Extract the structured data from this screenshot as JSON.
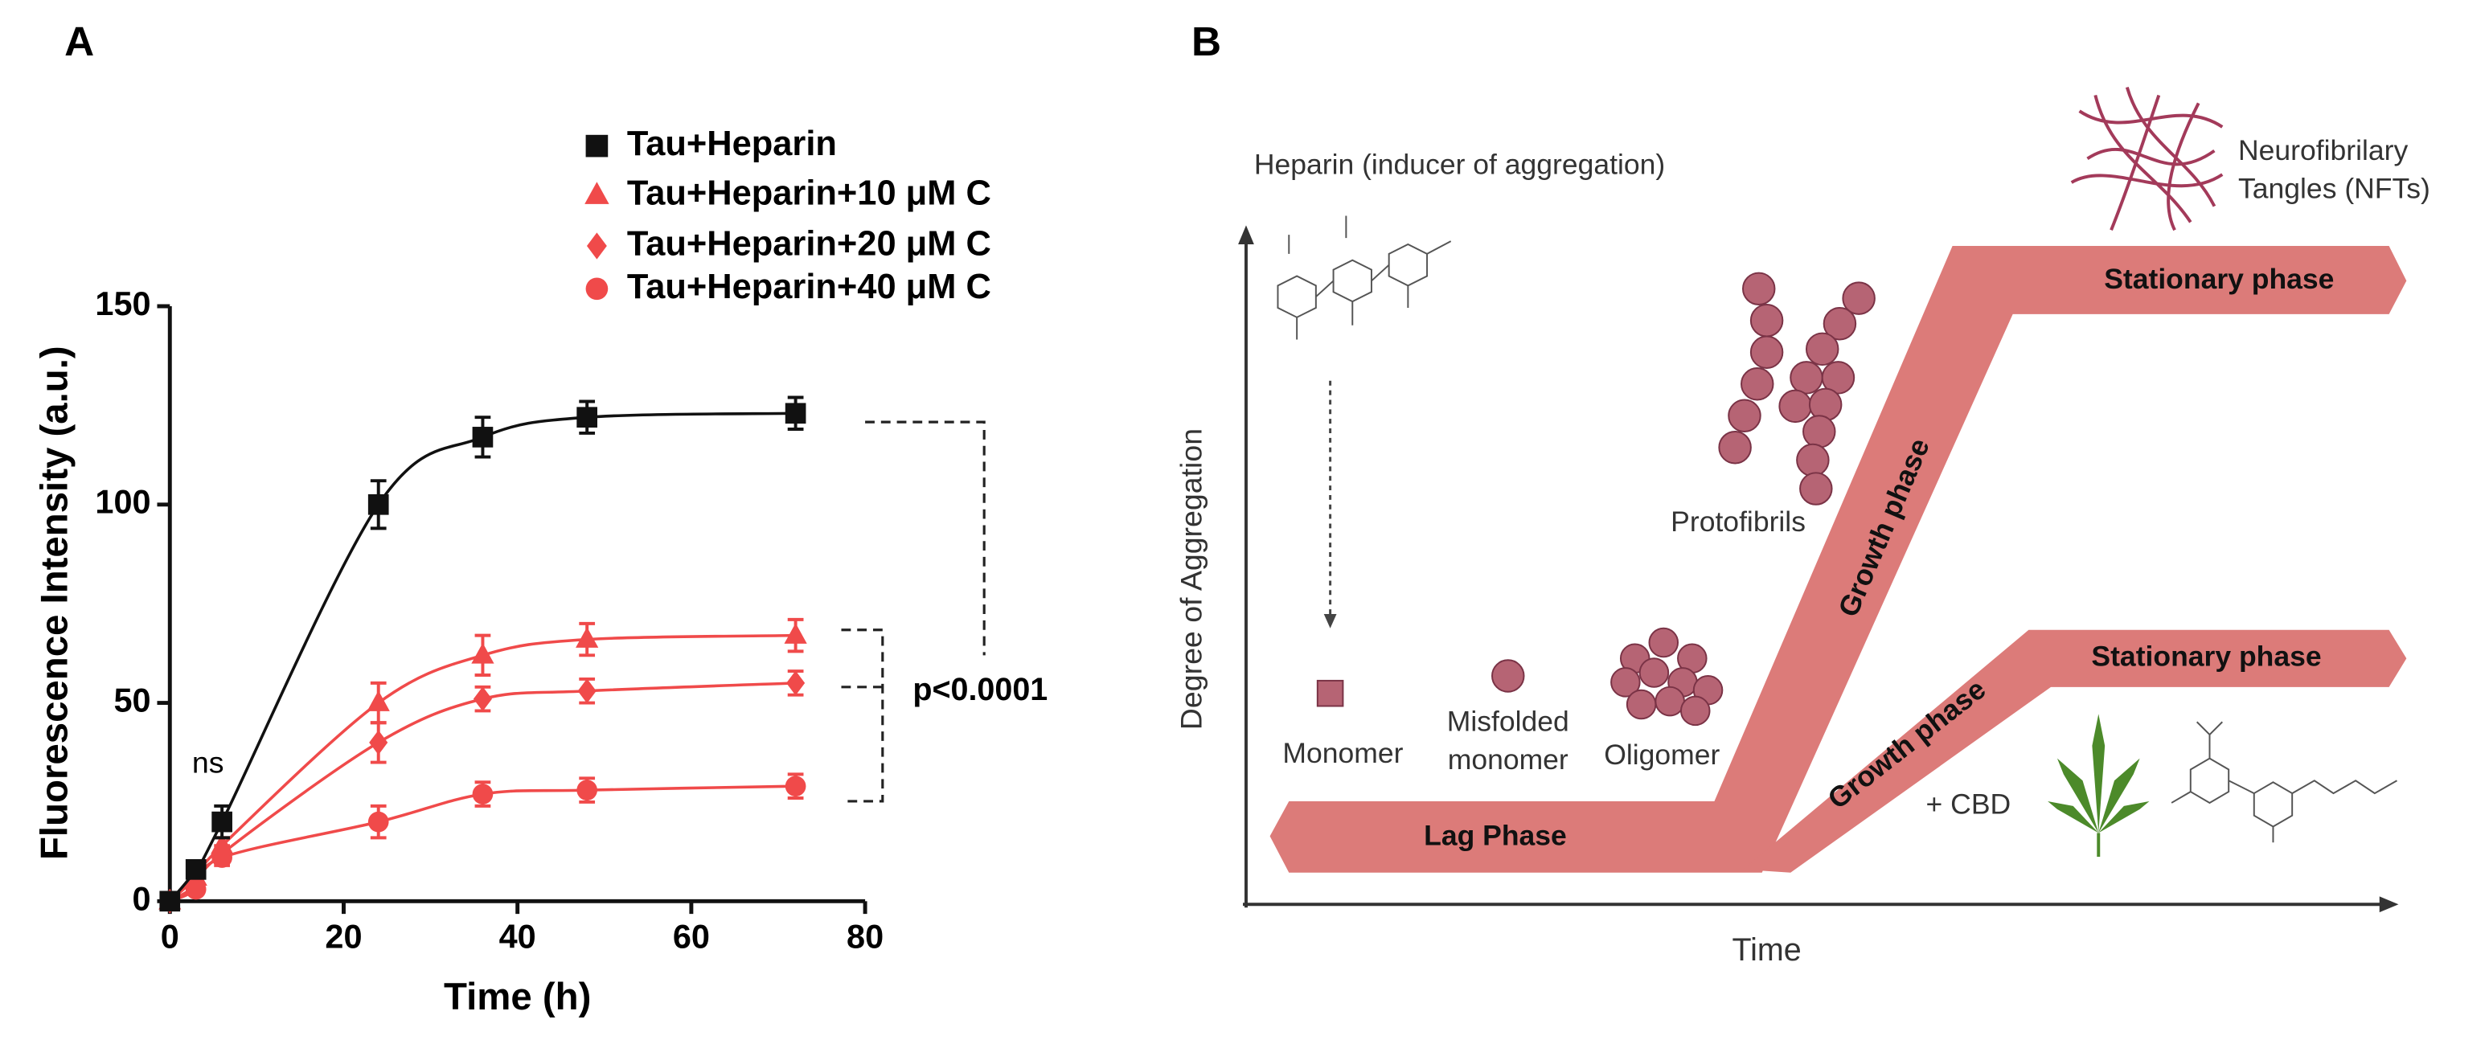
{
  "chart_data": {
    "type": "line",
    "panel_label": "A",
    "x_label": "Time (h)",
    "y_label": "Fluorescence Intensity (a.u.)",
    "x": [
      0,
      3,
      6,
      24,
      36,
      48,
      72
    ],
    "series": [
      {
        "name": "Tau+Heparin",
        "color": "#111111",
        "marker": "square",
        "values": [
          0,
          8,
          20,
          100,
          117,
          122,
          123
        ],
        "errors": [
          1,
          2,
          4,
          6,
          5,
          4,
          4
        ]
      },
      {
        "name": "Tau+Heparin+10 μM C",
        "color": "#f04a4a",
        "marker": "triangle",
        "values": [
          0,
          6,
          14,
          50,
          62,
          66,
          67
        ],
        "errors": [
          1,
          1,
          2,
          5,
          5,
          4,
          4
        ]
      },
      {
        "name": "Tau+Heparin+20 μM C",
        "color": "#f04a4a",
        "marker": "diamond",
        "values": [
          0,
          4,
          12,
          40,
          51,
          53,
          55
        ],
        "errors": [
          1,
          1,
          2,
          5,
          3,
          3,
          3
        ]
      },
      {
        "name": "Tau+Heparin+40 μM C",
        "color": "#f04a4a",
        "marker": "circle",
        "values": [
          0,
          3,
          11,
          20,
          27,
          28,
          29
        ],
        "errors": [
          1,
          1,
          2,
          4,
          3,
          3,
          3
        ]
      }
    ],
    "xlim": [
      0,
      80
    ],
    "xticks": [
      0,
      20,
      40,
      60,
      80
    ],
    "ylim": [
      0,
      150
    ],
    "yticks": [
      0,
      50,
      100,
      150
    ],
    "annotations": [
      "ns",
      "p<0.0001"
    ]
  },
  "diagram": {
    "panel_label": "B",
    "y_axis": "Degree of Aggregation",
    "x_axis": "Time",
    "heparin": "Heparin (inducer of aggregation)",
    "nft": [
      "Neurofibrilary",
      "Tangles (NFTs)"
    ],
    "stationary_upper": "Stationary phase",
    "stationary_lower": "Stationary phase",
    "growth_upper": "Growth  phase",
    "growth_lower": "Growth  phase",
    "lag": "Lag Phase",
    "protofibrils": "Protofibrils",
    "monomer": "Monomer",
    "misfolded": [
      "Misfolded",
      "monomer"
    ],
    "oligomer": "Oligomer",
    "cbd": "+ CBD"
  }
}
